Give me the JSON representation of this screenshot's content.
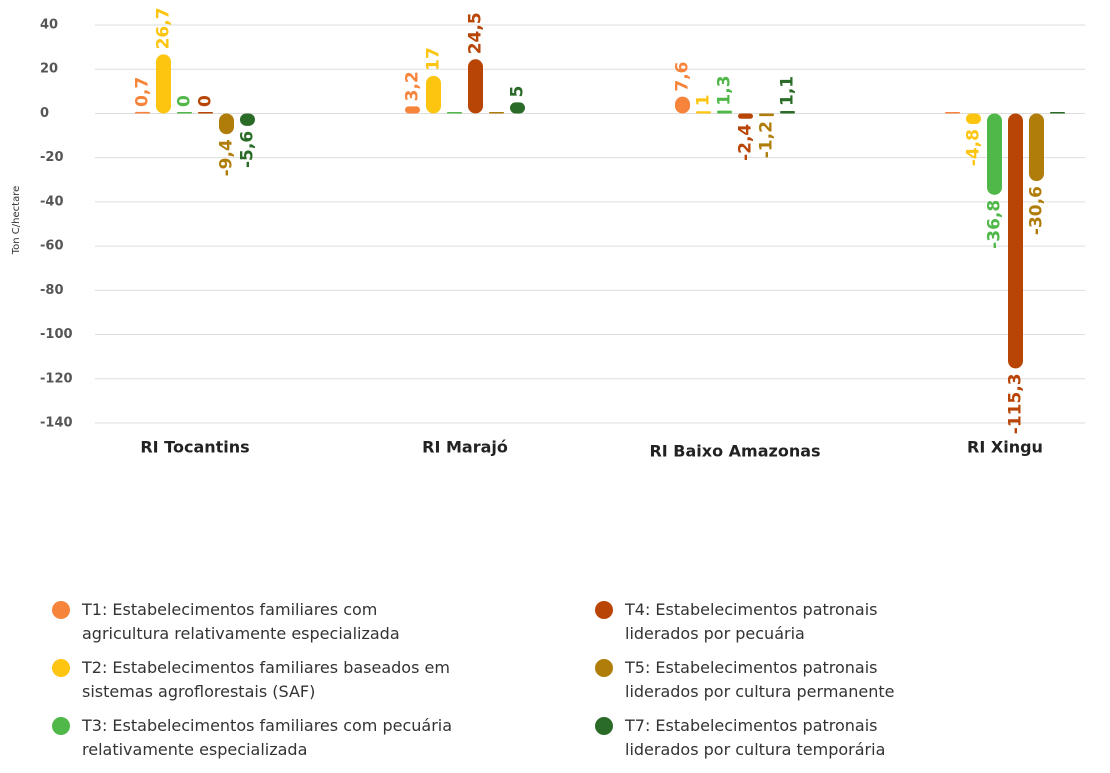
{
  "chart_data": {
    "type": "bar",
    "y_label": "Ton C/hectare",
    "categories": [
      "RI Tocantins",
      "RI Marajó",
      "RI Baixo Amazonas",
      "RI Xingu"
    ],
    "series": [
      {
        "name": "T1: Estabelecimentos familiares com agricultura relativamente especializada",
        "color": "#f7843b",
        "values": [
          0.7,
          3.2,
          7.6,
          0
        ],
        "value_labels": [
          "0,7",
          "3,2",
          "7,6",
          null
        ]
      },
      {
        "name": "T2: Estabelecimentos familiares baseados em sistemas agroflorestais (SAF)",
        "color": "#fdc50f",
        "values": [
          26.7,
          17,
          1,
          -4.8
        ],
        "value_labels": [
          "26,7",
          "17",
          "1",
          "-4,8"
        ]
      },
      {
        "name": "T3: Estabelecimentos familiares com pecuária relativamente especializada",
        "color": "#4fb848",
        "values": [
          0,
          0,
          1.3,
          -36.8
        ],
        "value_labels": [
          "0",
          null,
          "1,3",
          "-36,8"
        ]
      },
      {
        "name": "T4: Estabelecimentos patronais liderados por pecuária",
        "color": "#b84505",
        "values": [
          0,
          24.5,
          -2.4,
          -115.3
        ],
        "value_labels": [
          "0",
          "24,5",
          "-2,4",
          "-115,3"
        ]
      },
      {
        "name": "T5: Estabelecimentos patronais liderados por cultura permanente",
        "color": "#b07d0a",
        "values": [
          -9.4,
          0,
          -1.2,
          -30.6
        ],
        "value_labels": [
          "-9,4",
          null,
          "-1,2",
          "-30,6"
        ]
      },
      {
        "name": "T7: Estabelecimentos patronais liderados por cultura temporária",
        "color": "#2a6c27",
        "values": [
          -5.6,
          5,
          1.1,
          0
        ],
        "value_labels": [
          "-5,6",
          "5",
          "1,1",
          null
        ]
      }
    ],
    "ylim": [
      -140,
      40
    ],
    "yticks": [
      40,
      20,
      0,
      -20,
      -40,
      -60,
      -80,
      -100,
      -120,
      -140
    ],
    "grid": true,
    "legend": "bottom"
  }
}
